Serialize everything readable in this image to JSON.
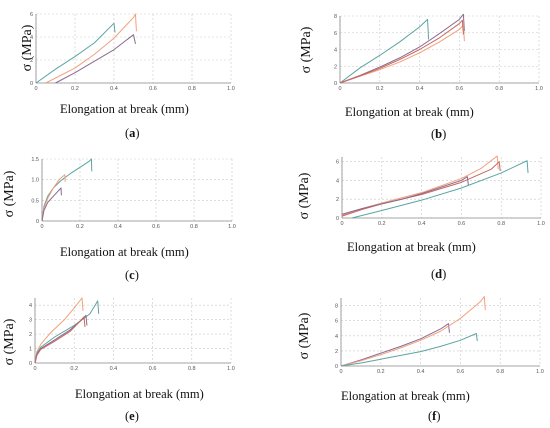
{
  "colors": {
    "teal": "#5aa5a2",
    "orange": "#f2a07a",
    "purple": "#8a6a90",
    "red": "#c8665e",
    "grid": "#c9c9c9"
  },
  "chart_data": [
    {
      "id": "a",
      "type": "line",
      "label_letter": "a",
      "xlabel": "Elongation at break (mm)",
      "ylabel": "σ (MPa)",
      "xlim": [
        0,
        1.0
      ],
      "ylim": [
        0,
        6
      ],
      "xticks": [
        "0",
        "0.2",
        "0.4",
        "0.6",
        "0.8",
        "1.0"
      ],
      "yticks": [
        "0",
        "2",
        "4",
        "6"
      ],
      "grid": true,
      "series": [
        {
          "color": "teal",
          "points": [
            [
              0.0,
              0
            ],
            [
              0.1,
              1.2
            ],
            [
              0.2,
              2.3
            ],
            [
              0.3,
              3.5
            ],
            [
              0.4,
              5.2
            ],
            [
              0.405,
              4.4
            ]
          ]
        },
        {
          "color": "orange",
          "points": [
            [
              0.05,
              0
            ],
            [
              0.2,
              1.3
            ],
            [
              0.3,
              2.5
            ],
            [
              0.4,
              3.9
            ],
            [
              0.5,
              5.7
            ],
            [
              0.51,
              6.0
            ],
            [
              0.515,
              4.5
            ]
          ]
        },
        {
          "color": "purple",
          "points": [
            [
              0.1,
              0
            ],
            [
              0.2,
              0.9
            ],
            [
              0.3,
              1.9
            ],
            [
              0.4,
              2.9
            ],
            [
              0.5,
              4.2
            ],
            [
              0.51,
              3.4
            ]
          ]
        }
      ]
    },
    {
      "id": "b",
      "type": "line",
      "label_letter": "b",
      "xlabel": "Elongation at break (mm)",
      "ylabel": "σ (MPa)",
      "xlim": [
        0,
        1.0
      ],
      "ylim": [
        0,
        8
      ],
      "xticks": [
        "0",
        "0.2",
        "0.4",
        "0.6",
        "0.8",
        "1.0"
      ],
      "yticks": [
        "0",
        "2",
        "4",
        "6",
        "8"
      ],
      "grid": true,
      "series": [
        {
          "color": "teal",
          "points": [
            [
              0.0,
              0
            ],
            [
              0.1,
              1.8
            ],
            [
              0.2,
              3.3
            ],
            [
              0.3,
              4.9
            ],
            [
              0.4,
              6.7
            ],
            [
              0.44,
              7.6
            ],
            [
              0.445,
              5.2
            ]
          ]
        },
        {
          "color": "purple",
          "points": [
            [
              0.0,
              0
            ],
            [
              0.1,
              0.9
            ],
            [
              0.2,
              1.9
            ],
            [
              0.3,
              3.0
            ],
            [
              0.4,
              4.3
            ],
            [
              0.5,
              5.9
            ],
            [
              0.6,
              7.6
            ],
            [
              0.62,
              8.2
            ],
            [
              0.625,
              6.2
            ]
          ]
        },
        {
          "color": "orange",
          "points": [
            [
              0.0,
              0
            ],
            [
              0.1,
              0.8
            ],
            [
              0.2,
              1.6
            ],
            [
              0.3,
              2.5
            ],
            [
              0.4,
              3.6
            ],
            [
              0.5,
              4.9
            ],
            [
              0.6,
              6.4
            ],
            [
              0.62,
              6.9
            ],
            [
              0.625,
              5.0
            ]
          ]
        },
        {
          "color": "red",
          "points": [
            [
              0.0,
              0
            ],
            [
              0.1,
              0.85
            ],
            [
              0.2,
              1.75
            ],
            [
              0.3,
              2.8
            ],
            [
              0.4,
              4.0
            ],
            [
              0.5,
              5.4
            ],
            [
              0.6,
              7.1
            ],
            [
              0.615,
              7.5
            ],
            [
              0.62,
              5.8
            ]
          ]
        }
      ]
    },
    {
      "id": "c",
      "type": "line",
      "label_letter": "c",
      "xlabel": "Elongation at break (mm)",
      "ylabel": "σ (MPa)",
      "xlim": [
        0,
        1.0
      ],
      "ylim": [
        0,
        1.5
      ],
      "xticks": [
        "0",
        "0.2",
        "0.4",
        "0.6",
        "0.8",
        "1.0"
      ],
      "yticks": [
        "0",
        "0.5",
        "1.0",
        "1.5"
      ],
      "grid": true,
      "series": [
        {
          "color": "teal",
          "points": [
            [
              0.0,
              0
            ],
            [
              0.01,
              0.35
            ],
            [
              0.03,
              0.6
            ],
            [
              0.06,
              0.8
            ],
            [
              0.1,
              0.98
            ],
            [
              0.15,
              1.15
            ],
            [
              0.2,
              1.3
            ],
            [
              0.25,
              1.45
            ],
            [
              0.26,
              1.5
            ],
            [
              0.262,
              1.2
            ]
          ]
        },
        {
          "color": "orange",
          "points": [
            [
              0.0,
              0
            ],
            [
              0.01,
              0.3
            ],
            [
              0.03,
              0.55
            ],
            [
              0.06,
              0.8
            ],
            [
              0.09,
              1.0
            ],
            [
              0.12,
              1.12
            ],
            [
              0.122,
              0.95
            ]
          ]
        },
        {
          "color": "purple",
          "points": [
            [
              0.0,
              0
            ],
            [
              0.01,
              0.25
            ],
            [
              0.03,
              0.45
            ],
            [
              0.06,
              0.6
            ],
            [
              0.09,
              0.75
            ],
            [
              0.1,
              0.8
            ],
            [
              0.102,
              0.62
            ]
          ]
        }
      ]
    },
    {
      "id": "d",
      "type": "line",
      "label_letter": "d",
      "xlabel": "Elongation at break (mm)",
      "ylabel": "σ (MPa)",
      "xlim": [
        0,
        1.0
      ],
      "ylim": [
        0,
        6.5
      ],
      "xticks": [
        "0",
        "0.2",
        "0.4",
        "0.6",
        "0.8",
        "1.0"
      ],
      "yticks": [
        "0",
        "2",
        "4",
        "6"
      ],
      "grid": true,
      "series": [
        {
          "color": "teal",
          "points": [
            [
              0.05,
              0
            ],
            [
              0.2,
              0.8
            ],
            [
              0.4,
              1.9
            ],
            [
              0.6,
              3.2
            ],
            [
              0.8,
              4.8
            ],
            [
              0.93,
              6.1
            ],
            [
              0.935,
              4.8
            ]
          ]
        },
        {
          "color": "orange",
          "points": [
            [
              0.0,
              0.3
            ],
            [
              0.1,
              1.0
            ],
            [
              0.2,
              1.6
            ],
            [
              0.4,
              2.7
            ],
            [
              0.6,
              4.2
            ],
            [
              0.7,
              5.3
            ],
            [
              0.78,
              6.6
            ],
            [
              0.785,
              5.2
            ]
          ]
        },
        {
          "color": "red",
          "points": [
            [
              0.0,
              0.2
            ],
            [
              0.1,
              0.9
            ],
            [
              0.2,
              1.5
            ],
            [
              0.4,
              2.5
            ],
            [
              0.6,
              3.8
            ],
            [
              0.75,
              5.2
            ],
            [
              0.79,
              6.0
            ],
            [
              0.795,
              5.0
            ]
          ]
        },
        {
          "color": "purple",
          "points": [
            [
              0.0,
              0.4
            ],
            [
              0.1,
              1.0
            ],
            [
              0.2,
              1.5
            ],
            [
              0.3,
              2.0
            ],
            [
              0.4,
              2.6
            ],
            [
              0.5,
              3.3
            ],
            [
              0.6,
              4.0
            ],
            [
              0.63,
              4.4
            ],
            [
              0.635,
              3.5
            ]
          ]
        }
      ]
    },
    {
      "id": "e",
      "type": "line",
      "label_letter": "e",
      "xlabel": "Elongation at break (mm)",
      "ylabel": "σ (MPa)",
      "xlim": [
        0,
        1.0
      ],
      "ylim": [
        0,
        4.5
      ],
      "xticks": [
        "0",
        "0.2",
        "0.4",
        "0.6",
        "0.8",
        "1.0"
      ],
      "yticks": [
        "0",
        "1",
        "2",
        "3",
        "4"
      ],
      "grid": true,
      "series": [
        {
          "color": "orange",
          "points": [
            [
              0.0,
              0
            ],
            [
              0.01,
              0.8
            ],
            [
              0.03,
              1.3
            ],
            [
              0.08,
              2.1
            ],
            [
              0.15,
              3.0
            ],
            [
              0.2,
              3.8
            ],
            [
              0.24,
              4.5
            ],
            [
              0.245,
              3.6
            ]
          ]
        },
        {
          "color": "teal",
          "points": [
            [
              0.0,
              0
            ],
            [
              0.01,
              0.7
            ],
            [
              0.03,
              1.1
            ],
            [
              0.1,
              1.8
            ],
            [
              0.2,
              2.6
            ],
            [
              0.28,
              3.4
            ],
            [
              0.32,
              4.3
            ],
            [
              0.325,
              3.4
            ]
          ]
        },
        {
          "color": "purple",
          "points": [
            [
              0.0,
              0
            ],
            [
              0.01,
              0.6
            ],
            [
              0.03,
              1.0
            ],
            [
              0.1,
              1.6
            ],
            [
              0.18,
              2.3
            ],
            [
              0.24,
              3.0
            ],
            [
              0.26,
              3.3
            ],
            [
              0.265,
              2.6
            ]
          ]
        },
        {
          "color": "red",
          "points": [
            [
              0.0,
              0
            ],
            [
              0.01,
              0.55
            ],
            [
              0.03,
              0.95
            ],
            [
              0.1,
              1.5
            ],
            [
              0.18,
              2.2
            ],
            [
              0.23,
              2.9
            ],
            [
              0.25,
              3.2
            ],
            [
              0.255,
              2.5
            ]
          ]
        }
      ]
    },
    {
      "id": "f",
      "type": "line",
      "label_letter": "f",
      "xlabel": "Elongation at break (mm)",
      "ylabel": "σ (MPa)",
      "xlim": [
        0,
        1.0
      ],
      "ylim": [
        0,
        9
      ],
      "xticks": [
        "0",
        "0.2",
        "0.4",
        "0.6",
        "0.8",
        "1.0"
      ],
      "yticks": [
        "0",
        "2",
        "4",
        "6",
        "8"
      ],
      "grid": true,
      "series": [
        {
          "color": "purple",
          "points": [
            [
              0.0,
              0
            ],
            [
              0.1,
              0.8
            ],
            [
              0.2,
              1.7
            ],
            [
              0.3,
              2.6
            ],
            [
              0.4,
              3.6
            ],
            [
              0.5,
              4.9
            ],
            [
              0.54,
              5.6
            ],
            [
              0.545,
              4.4
            ]
          ]
        },
        {
          "color": "orange",
          "points": [
            [
              0.0,
              0
            ],
            [
              0.1,
              0.7
            ],
            [
              0.2,
              1.5
            ],
            [
              0.3,
              2.4
            ],
            [
              0.4,
              3.4
            ],
            [
              0.5,
              4.6
            ],
            [
              0.6,
              6.3
            ],
            [
              0.7,
              8.5
            ],
            [
              0.72,
              9.2
            ],
            [
              0.725,
              7.4
            ]
          ]
        },
        {
          "color": "teal",
          "points": [
            [
              0.0,
              0
            ],
            [
              0.1,
              0.4
            ],
            [
              0.2,
              0.9
            ],
            [
              0.3,
              1.4
            ],
            [
              0.4,
              1.9
            ],
            [
              0.5,
              2.6
            ],
            [
              0.6,
              3.4
            ],
            [
              0.68,
              4.3
            ],
            [
              0.685,
              3.3
            ]
          ]
        }
      ]
    }
  ]
}
